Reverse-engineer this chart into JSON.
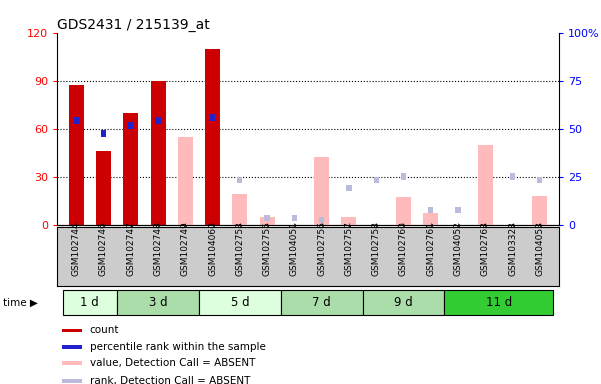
{
  "title": "GDS2431 / 215139_at",
  "samples": [
    "GSM102744",
    "GSM102746",
    "GSM102747",
    "GSM102748",
    "GSM102749",
    "GSM104060",
    "GSM102753",
    "GSM102755",
    "GSM104051",
    "GSM102756",
    "GSM102757",
    "GSM102758",
    "GSM102760",
    "GSM102761",
    "GSM104052",
    "GSM102763",
    "GSM103323",
    "GSM104053"
  ],
  "time_groups": [
    {
      "label": "1 d",
      "start": 0,
      "end": 2,
      "color": "#ddffdd"
    },
    {
      "label": "3 d",
      "start": 2,
      "end": 5,
      "color": "#aaddaa"
    },
    {
      "label": "5 d",
      "start": 5,
      "end": 8,
      "color": "#ddffdd"
    },
    {
      "label": "7 d",
      "start": 8,
      "end": 11,
      "color": "#aaddaa"
    },
    {
      "label": "9 d",
      "start": 11,
      "end": 14,
      "color": "#aaddaa"
    },
    {
      "label": "11 d",
      "start": 14,
      "end": 18,
      "color": "#33cc33"
    }
  ],
  "count_values": [
    87,
    46,
    70,
    90,
    0,
    110,
    0,
    0,
    0,
    0,
    0,
    0,
    0,
    0,
    0,
    0,
    0,
    0
  ],
  "percentile_values": [
    65,
    57,
    62,
    65,
    0,
    67,
    0,
    0,
    0,
    0,
    0,
    0,
    0,
    0,
    0,
    0,
    0,
    0
  ],
  "absent_value_values": [
    0,
    0,
    0,
    0,
    55,
    0,
    19,
    5,
    0,
    42,
    5,
    0,
    17,
    7,
    0,
    50,
    0,
    18
  ],
  "absent_rank_values": [
    0,
    0,
    0,
    0,
    0,
    0,
    28,
    4,
    4,
    3,
    23,
    28,
    30,
    9,
    9,
    0,
    30,
    28
  ],
  "ylim_left": [
    0,
    120
  ],
  "yticks_left": [
    0,
    30,
    60,
    90,
    120
  ],
  "ytick_labels_left": [
    "0",
    "30",
    "60",
    "90",
    "120"
  ],
  "ytick_labels_right": [
    "0",
    "25",
    "50",
    "75",
    "100%"
  ],
  "count_color": "#cc0000",
  "percentile_color": "#2222cc",
  "absent_value_color": "#ffbbbb",
  "absent_rank_color": "#bbbbdd",
  "plot_bg": "#ffffff",
  "xlabel_bg": "#cccccc",
  "bar_width": 0.55,
  "legend_items": [
    {
      "label": "count",
      "color": "#cc0000"
    },
    {
      "label": "percentile rank within the sample",
      "color": "#2222cc"
    },
    {
      "label": "value, Detection Call = ABSENT",
      "color": "#ffbbbb"
    },
    {
      "label": "rank, Detection Call = ABSENT",
      "color": "#bbbbdd"
    }
  ]
}
